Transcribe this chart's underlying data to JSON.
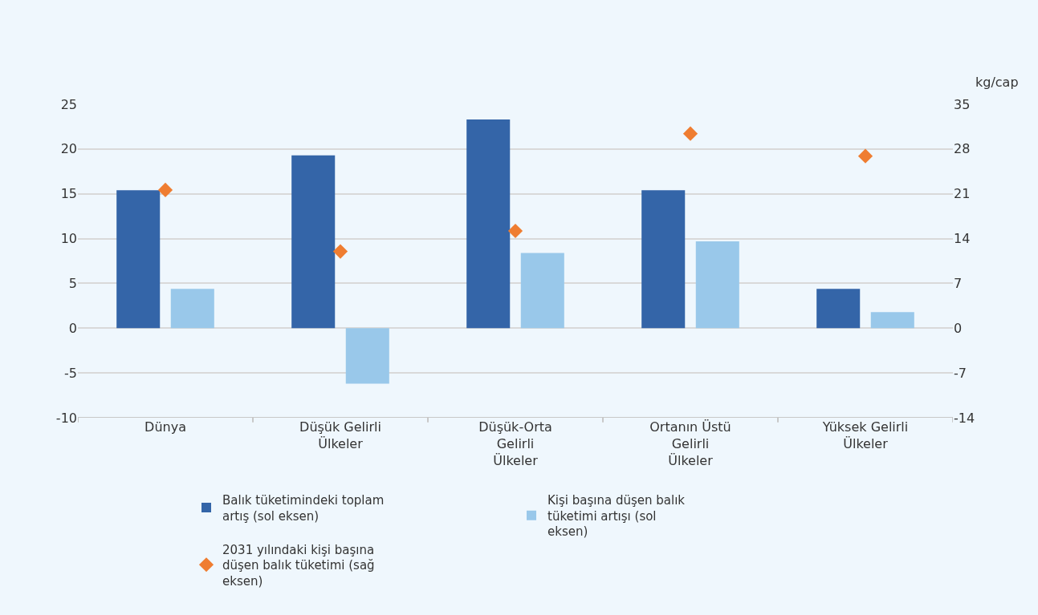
{
  "chart_data": {
    "type": "bar",
    "categories": [
      "Dünya",
      "Düşük Gelirli Ülkeler",
      "Düşük-Orta Gelirli Ülkeler",
      "Ortanın Üstü Gelirli Ülkeler",
      "Yüksek Gelirli Ülkeler"
    ],
    "series": [
      {
        "name": "Balık tüketimindeki toplam artış (sol eksen)",
        "color": "#3465a8",
        "values": [
          15.4,
          19.3,
          23.3,
          15.4,
          4.4
        ]
      },
      {
        "name": "Kişi başına düşen balık tüketimi artışı (sol eksen)",
        "color": "#99c8ea",
        "values": [
          4.4,
          -6.2,
          8.4,
          9.7,
          1.8
        ]
      },
      {
        "name": "2031 yılındaki kişi başına düşen balık tüketimi (sağ eksen)",
        "type": "scatter",
        "axis": "y2",
        "marker": "diamond",
        "color": "#ef7d31",
        "values": [
          21.6,
          12.0,
          15.2,
          30.4,
          26.9
        ]
      }
    ],
    "y2label": "kg/cap",
    "ylim": [
      -10,
      25
    ],
    "yticks": [
      -10,
      -5,
      0,
      5,
      10,
      15,
      20,
      25
    ],
    "y2lim": [
      -14,
      35
    ],
    "y2ticks": [
      -14,
      -7,
      0,
      7,
      14,
      21,
      28,
      35
    ],
    "grid": "y",
    "legend": "bottom"
  }
}
